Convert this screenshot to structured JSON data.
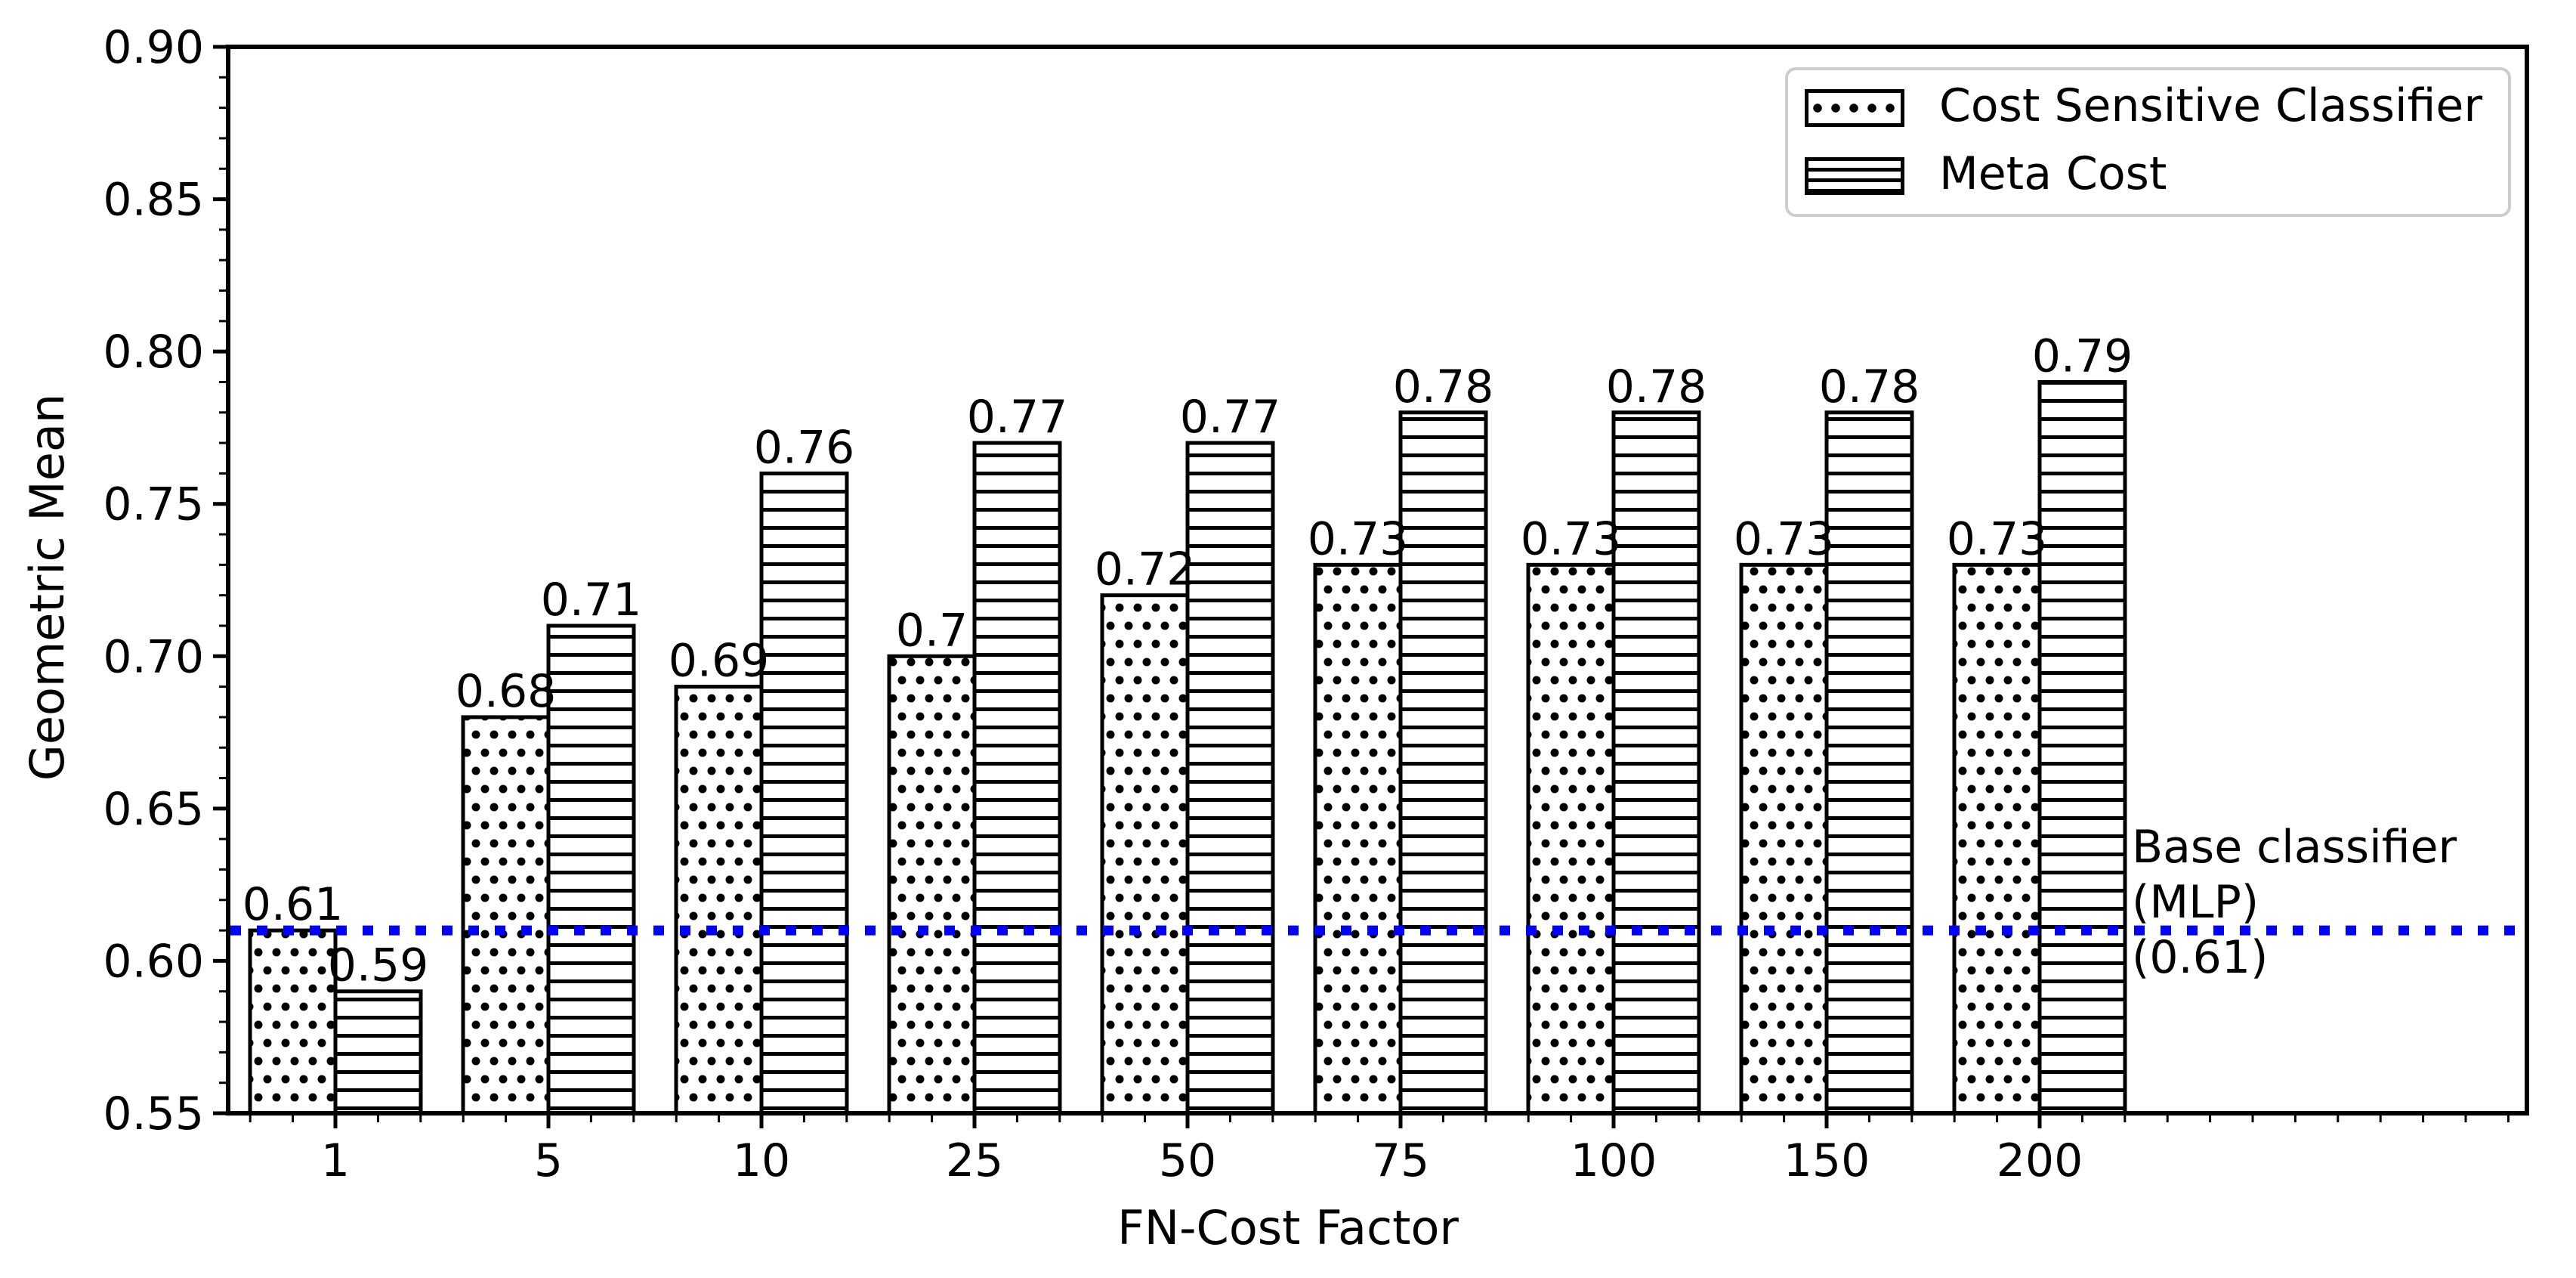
{
  "chart_data": {
    "type": "bar",
    "title": "",
    "xlabel": "FN-Cost Factor",
    "ylabel": "Geometric Mean",
    "categories": [
      "1",
      "5",
      "10",
      "25",
      "50",
      "75",
      "100",
      "150",
      "200"
    ],
    "series": [
      {
        "name": "Cost Sensitive Classifier",
        "hatch": "dots",
        "values": [
          0.61,
          0.68,
          0.69,
          0.7,
          0.72,
          0.73,
          0.73,
          0.73,
          0.73
        ],
        "bar_labels": [
          "0.61",
          "0.68",
          "0.69",
          "0.7",
          "0.72",
          "0.73",
          "0.73",
          "0.73",
          "0.73"
        ]
      },
      {
        "name": "Meta Cost",
        "hatch": "hlines",
        "values": [
          0.59,
          0.71,
          0.76,
          0.77,
          0.77,
          0.78,
          0.78,
          0.78,
          0.79
        ],
        "bar_labels": [
          "0.59",
          "0.71",
          "0.76",
          "0.77",
          "0.77",
          "0.78",
          "0.78",
          "0.78",
          "0.79"
        ]
      }
    ],
    "ylim": [
      0.55,
      0.9
    ],
    "ytick_step": 0.05,
    "ytick_labels": [
      "0.55",
      "0.60",
      "0.65",
      "0.70",
      "0.75",
      "0.80",
      "0.85",
      "0.90"
    ],
    "y_minor_step": 0.01,
    "x_minor_step": 0.2,
    "bar_width_units": 0.4,
    "grid": false,
    "legend_position": "upper right",
    "baseline": {
      "value": 0.61,
      "color": "#0000ff",
      "style": "dotted",
      "label": "Base classifier\n(MLP)\n(0.61)"
    },
    "colors": {
      "bar_fill": "#ffffff",
      "bar_edge": "#000000",
      "axis": "#000000",
      "text": "#000000",
      "legend_border": "#cccccc"
    }
  }
}
